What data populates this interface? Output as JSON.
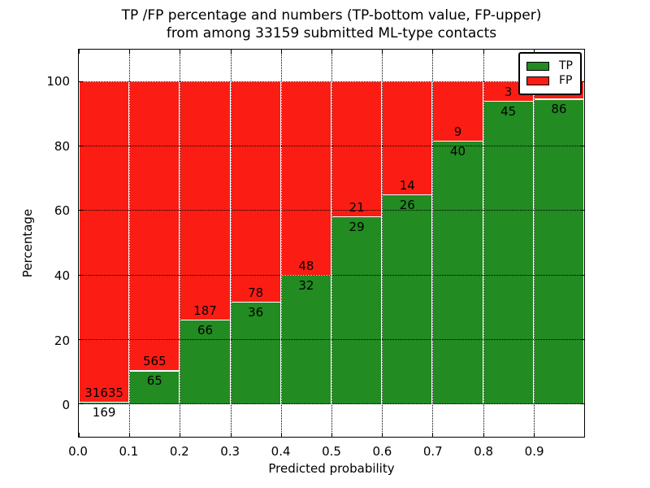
{
  "title": {
    "line1": "TP /FP percentage and numbers (TP-bottom value, FP-upper)",
    "line2": "from among 33159 submitted ML-type contacts"
  },
  "axes": {
    "xlabel": "Predicted probability",
    "ylabel": "Percentage",
    "xtick_labels": [
      "0.0",
      "0.1",
      "0.2",
      "0.3",
      "0.4",
      "0.5",
      "0.6",
      "0.7",
      "0.8",
      "0.9"
    ],
    "ytick_labels": [
      "0",
      "20",
      "40",
      "60",
      "80",
      "100"
    ],
    "ytick_values": [
      0,
      20,
      40,
      60,
      80,
      100
    ],
    "xlim": [
      0.0,
      1.0
    ],
    "ylim": [
      -10,
      110
    ],
    "grid": "dotted"
  },
  "legend": {
    "position": "upper right",
    "items": [
      {
        "label": "TP",
        "color": "#228b22"
      },
      {
        "label": "FP",
        "color": "#fb1d14"
      }
    ]
  },
  "colors": {
    "tp": "#228b22",
    "fp": "#fb1d14",
    "background": "#ffffff",
    "text": "#000000"
  },
  "chart_data": {
    "type": "bar",
    "stacked": true,
    "normalized_to_percent": true,
    "title": "TP /FP percentage and numbers (TP-bottom value, FP-upper) from among 33159 submitted ML-type contacts",
    "xlabel": "Predicted probability",
    "ylabel": "Percentage",
    "total_contacts": 33159,
    "bin_edges": [
      0.0,
      0.1,
      0.2,
      0.3,
      0.4,
      0.5,
      0.6,
      0.7,
      0.8,
      0.9,
      1.0
    ],
    "categories": [
      "0.0-0.1",
      "0.1-0.2",
      "0.2-0.3",
      "0.3-0.4",
      "0.4-0.5",
      "0.5-0.6",
      "0.6-0.7",
      "0.7-0.8",
      "0.8-0.9",
      "0.9-1.0"
    ],
    "series": [
      {
        "name": "TP",
        "color": "#228b22",
        "counts": [
          169,
          65,
          66,
          36,
          32,
          29,
          26,
          40,
          45,
          86
        ],
        "percent": [
          0.5,
          10.3,
          26.1,
          31.6,
          40.0,
          58.0,
          65.0,
          81.6,
          93.8,
          94.5
        ]
      },
      {
        "name": "FP",
        "color": "#fb1d14",
        "counts": [
          31635,
          565,
          187,
          78,
          48,
          21,
          14,
          9,
          3,
          null
        ],
        "percent": [
          99.5,
          89.7,
          73.9,
          68.4,
          60.0,
          42.0,
          35.0,
          18.4,
          6.2,
          5.5
        ]
      }
    ],
    "label_convention": "TP count below segment boundary, FP count above segment boundary",
    "legend_position": "upper right",
    "grid": "on",
    "ylim": [
      -10,
      110
    ],
    "xlim": [
      0.0,
      1.0
    ]
  }
}
